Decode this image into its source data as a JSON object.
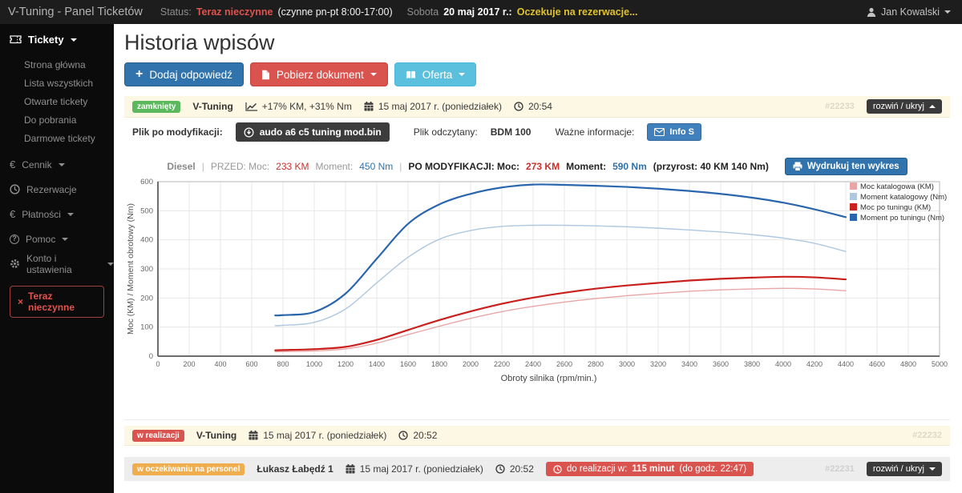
{
  "icons": {
    "euro": "€",
    "question": "?",
    "close": "×",
    "plus": "+"
  },
  "topbar": {
    "app_title": "V-Tuning - Panel Ticketów",
    "status_label": "Status:",
    "status_value": "Teraz nieczynne",
    "status_hours": "(czynne pn-pt 8:00-17:00)",
    "day_name": "Sobota",
    "date": "20 maj 2017 r.:",
    "date_note": "Oczekuje na rezerwacje...",
    "user": "Jan Kowalski"
  },
  "sidebar": {
    "tickets": "Tickety",
    "tickets_sub": [
      "Strona główna",
      "Lista wszystkich",
      "Otwarte tickety",
      "Do pobrania",
      "Darmowe tickety"
    ],
    "cennik": "Cennik",
    "rezerwacje": "Rezerwacje",
    "platnosci": "Płatności",
    "pomoc": "Pomoc",
    "konto": "Konto i ustawienia",
    "closed_button": "Teraz nieczynne"
  },
  "main": {
    "title": "Historia wpisów",
    "add_button": "Dodaj odpowiedź",
    "download_button": "Pobierz dokument",
    "offer_button": "Oferta"
  },
  "tickets": [
    {
      "status": "zamknięty",
      "author": "V-Tuning",
      "gain": "+17% KM, +31% Nm",
      "date": "15 maj 2017 r. (poniedziałek)",
      "time": "20:54",
      "id": "#22233",
      "toggle": "rozwiń / ukryj"
    },
    {
      "status": "w realizacji",
      "author": "V-Tuning",
      "date": "15 maj 2017 r. (poniedziałek)",
      "time": "20:52",
      "id": "#22232"
    },
    {
      "status": "w oczekiwaniu na personel",
      "author": "Łukasz Łabędź 1",
      "date": "15 maj 2017 r. (poniedziałek)",
      "time": "20:52",
      "deadline_prefix": "do realizacji w:",
      "deadline_minutes": "115 minut",
      "deadline_suffix": "(do godz. 22:47)",
      "id": "#22231",
      "toggle": "rozwiń / ukryj"
    }
  ],
  "file_row": {
    "label": "Plik po modyfikacji:",
    "file_button": "audo a6 c5 tuning mod.bin",
    "read_label": "Plik odczytany:",
    "read_value": "BDM 100",
    "info_label": "Ważne informacje:",
    "info_button": "Info S"
  },
  "chart_header": {
    "fuel": "Diesel",
    "sep": "|",
    "before_label": "PRZED: Moc:",
    "before_power": "233 KM",
    "before_torque_label": "Moment:",
    "before_torque": "450 Nm",
    "after_label": "PO MODYFIKACJI: Moc:",
    "after_power": "273 KM",
    "after_torque_label": "Moment:",
    "after_torque": "590 Nm",
    "gain": "(przyrost: 40 KM 140 Nm)",
    "print_button": "Wydrukuj ten wykres"
  },
  "chart_data": {
    "type": "line",
    "xlabel": "Obroty silnika (rpm/min.)",
    "ylabel": "Moc (KM) / Moment obrotowy (Nm)",
    "xlim": [
      0,
      5000
    ],
    "xstep": 200,
    "ylim": [
      0,
      600
    ],
    "ystep": 100,
    "grid": true,
    "legend_position": "top-right",
    "x": [
      750,
      800,
      1000,
      1200,
      1400,
      1600,
      1800,
      2000,
      2200,
      2400,
      2600,
      2800,
      3000,
      3200,
      3400,
      3600,
      3800,
      4000,
      4200,
      4400
    ],
    "series": [
      {
        "name": "Moc katalogowa (KM)",
        "color": "#e9a6a6",
        "width": 1.4,
        "values": [
          15,
          16,
          18,
          25,
          45,
          74,
          103,
          130,
          153,
          171,
          186,
          198,
          208,
          216,
          223,
          228,
          231,
          233,
          231,
          225
        ]
      },
      {
        "name": "Moment katalogowy (Nm)",
        "color": "#aec8e0",
        "width": 1.4,
        "values": [
          105,
          106,
          116,
          162,
          252,
          340,
          402,
          432,
          446,
          450,
          450,
          448,
          445,
          440,
          434,
          427,
          418,
          406,
          388,
          360
        ]
      },
      {
        "name": "Moc po tuningu (KM)",
        "color": "#c9201d",
        "width": 2.2,
        "values": [
          20,
          21,
          24,
          32,
          56,
          90,
          124,
          154,
          180,
          201,
          218,
          232,
          243,
          252,
          260,
          266,
          270,
          273,
          271,
          264
        ]
      },
      {
        "name": "Moment po tuningu (Nm)",
        "color": "#2a66ad",
        "width": 2.2,
        "values": [
          140,
          141,
          152,
          215,
          335,
          455,
          522,
          558,
          580,
          590,
          589,
          586,
          582,
          576,
          568,
          558,
          545,
          528,
          505,
          478
        ]
      }
    ]
  }
}
